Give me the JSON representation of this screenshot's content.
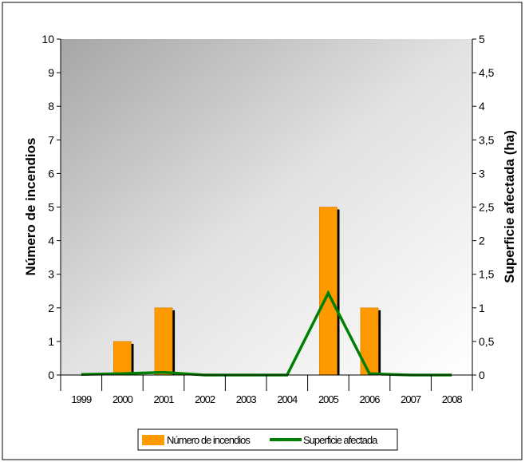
{
  "chart_data": {
    "type": "bar",
    "categories": [
      "1999",
      "2000",
      "2001",
      "2002",
      "2003",
      "2004",
      "2005",
      "2006",
      "2007",
      "2008"
    ],
    "series": [
      {
        "name": "Número de incendios",
        "kind": "bar",
        "axis": "left",
        "color": "#FF9900",
        "values": [
          0,
          1,
          2,
          0,
          0,
          0,
          5,
          2,
          0,
          0
        ]
      },
      {
        "name": "Superficie afectada",
        "kind": "line",
        "axis": "right",
        "color": "#008000",
        "values": [
          0.01,
          0.02,
          0.04,
          0,
          0,
          0,
          1.22,
          0.02,
          0,
          0
        ]
      }
    ],
    "ylabel": "Número de incendios",
    "ylabel_right": "Superficie afectada (ha)",
    "ylim": [
      0,
      10
    ],
    "ylim_right": [
      0,
      5
    ],
    "yticks": [
      "0",
      "1",
      "2",
      "3",
      "4",
      "5",
      "6",
      "7",
      "8",
      "9",
      "10"
    ],
    "yticks_right": [
      "0",
      "0,5",
      "1",
      "1,5",
      "2",
      "2,5",
      "3",
      "3,5",
      "4",
      "4,5",
      "5"
    ],
    "grid": false,
    "legend_position": "bottom",
    "legend": [
      "Número de incendios",
      "Superficie afectada"
    ]
  }
}
